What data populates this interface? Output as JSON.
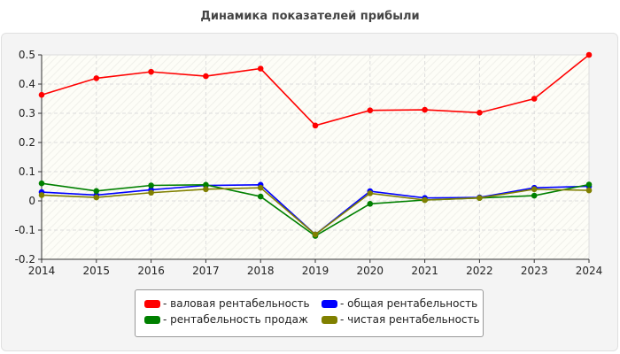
{
  "chart_data": {
    "type": "line",
    "title": "Динамика показателей прибыли",
    "x": [
      2014,
      2015,
      2016,
      2017,
      2018,
      2019,
      2020,
      2021,
      2022,
      2023,
      2024
    ],
    "xlim": [
      2014,
      2024
    ],
    "ylim": [
      -0.2,
      0.5
    ],
    "yticks": [
      "-0.2",
      "-0.1",
      "0",
      "0.1",
      "0.2",
      "0.3",
      "0.4",
      "0.5"
    ],
    "xticks": [
      "2014",
      "2015",
      "2016",
      "2017",
      "2018",
      "2019",
      "2020",
      "2021",
      "2022",
      "2023",
      "2024"
    ],
    "grid": true,
    "legend_position": "bottom",
    "series": [
      {
        "name": "- валовая рентабельность",
        "color": "#ff0000",
        "values": [
          0.363,
          0.42,
          0.442,
          0.427,
          0.453,
          0.258,
          0.31,
          0.312,
          0.302,
          0.35,
          0.5
        ]
      },
      {
        "name": "- общая рентабельность",
        "color": "#0000ff",
        "values": [
          0.03,
          0.02,
          0.038,
          0.053,
          0.055,
          -0.115,
          0.033,
          0.01,
          0.012,
          0.045,
          0.05
        ]
      },
      {
        "name": "- рентабельность продаж",
        "color": "#008000",
        "values": [
          0.06,
          0.034,
          0.053,
          0.055,
          0.015,
          -0.12,
          -0.01,
          0.003,
          0.01,
          0.018,
          0.056
        ]
      },
      {
        "name": "- чистая рентабельность",
        "color": "#808000",
        "values": [
          0.02,
          0.012,
          0.028,
          0.04,
          0.045,
          -0.115,
          0.026,
          0.003,
          0.01,
          0.04,
          0.036
        ]
      }
    ]
  }
}
